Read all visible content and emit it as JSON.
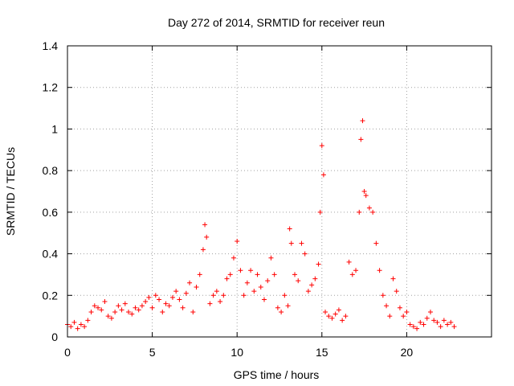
{
  "chart_data": {
    "type": "scatter",
    "title": "Day 272 of 2014, SRMTID for receiver reun",
    "xlabel": "GPS time / hours",
    "ylabel": "SRMTID / TECUs",
    "xlim": [
      0,
      25
    ],
    "ylim": [
      0,
      1.4
    ],
    "xticks": [
      0,
      5,
      10,
      15,
      20
    ],
    "yticks": [
      0,
      0.2,
      0.4,
      0.6,
      0.8,
      1,
      1.2,
      1.4
    ],
    "xtick_labels": [
      "0",
      "5",
      "10",
      "15",
      "20"
    ],
    "ytick_labels": [
      "0",
      "0.2",
      "0.4",
      "0.6",
      "0.8",
      "1",
      "1.2",
      "1.4"
    ],
    "grid": true,
    "marker": "plus",
    "colors": {
      "series": "#ff0000",
      "grid": "#a0a0a0",
      "axis": "#000000"
    },
    "series": [
      {
        "name": "SRMTID",
        "x": [
          0.0,
          0.2,
          0.4,
          0.6,
          0.8,
          1.0,
          1.2,
          1.4,
          1.6,
          1.8,
          2.0,
          2.2,
          2.4,
          2.6,
          2.8,
          3.0,
          3.2,
          3.4,
          3.6,
          3.8,
          4.0,
          4.2,
          4.4,
          4.6,
          4.8,
          5.0,
          5.2,
          5.4,
          5.6,
          5.8,
          6.0,
          6.2,
          6.4,
          6.6,
          6.8,
          7.0,
          7.2,
          7.4,
          7.6,
          7.8,
          8.0,
          8.1,
          8.2,
          8.4,
          8.6,
          8.8,
          9.0,
          9.2,
          9.4,
          9.6,
          9.8,
          10.0,
          10.2,
          10.4,
          10.6,
          10.8,
          11.0,
          11.2,
          11.4,
          11.6,
          11.8,
          12.0,
          12.2,
          12.4,
          12.6,
          12.8,
          13.0,
          13.1,
          13.2,
          13.4,
          13.6,
          13.8,
          14.0,
          14.2,
          14.4,
          14.6,
          14.8,
          14.9,
          15.0,
          15.1,
          15.2,
          15.4,
          15.6,
          15.8,
          16.0,
          16.2,
          16.4,
          16.6,
          16.8,
          17.0,
          17.2,
          17.3,
          17.4,
          17.5,
          17.6,
          17.8,
          18.0,
          18.2,
          18.4,
          18.6,
          18.8,
          19.0,
          19.2,
          19.4,
          19.6,
          19.8,
          20.0,
          20.2,
          20.4,
          20.6,
          20.8,
          21.0,
          21.2,
          21.4,
          21.6,
          21.8,
          22.0,
          22.2,
          22.4,
          22.6,
          22.8
        ],
        "y": [
          0.06,
          0.05,
          0.07,
          0.04,
          0.06,
          0.05,
          0.08,
          0.12,
          0.15,
          0.14,
          0.13,
          0.17,
          0.1,
          0.09,
          0.12,
          0.15,
          0.13,
          0.16,
          0.12,
          0.11,
          0.14,
          0.13,
          0.15,
          0.17,
          0.19,
          0.14,
          0.2,
          0.18,
          0.12,
          0.16,
          0.15,
          0.19,
          0.22,
          0.18,
          0.14,
          0.21,
          0.26,
          0.12,
          0.24,
          0.3,
          0.42,
          0.54,
          0.48,
          0.16,
          0.2,
          0.22,
          0.17,
          0.2,
          0.28,
          0.3,
          0.38,
          0.46,
          0.32,
          0.2,
          0.26,
          0.32,
          0.22,
          0.3,
          0.24,
          0.18,
          0.27,
          0.38,
          0.3,
          0.14,
          0.12,
          0.2,
          0.15,
          0.52,
          0.45,
          0.3,
          0.27,
          0.45,
          0.4,
          0.22,
          0.25,
          0.28,
          0.35,
          0.6,
          0.92,
          0.78,
          0.12,
          0.1,
          0.09,
          0.11,
          0.13,
          0.08,
          0.1,
          0.36,
          0.3,
          0.32,
          0.6,
          0.95,
          1.04,
          0.7,
          0.68,
          0.62,
          0.6,
          0.45,
          0.32,
          0.2,
          0.15,
          0.1,
          0.28,
          0.22,
          0.14,
          0.1,
          0.12,
          0.06,
          0.05,
          0.04,
          0.07,
          0.06,
          0.09,
          0.12,
          0.08,
          0.07,
          0.05,
          0.08,
          0.06,
          0.07,
          0.05
        ]
      }
    ]
  }
}
